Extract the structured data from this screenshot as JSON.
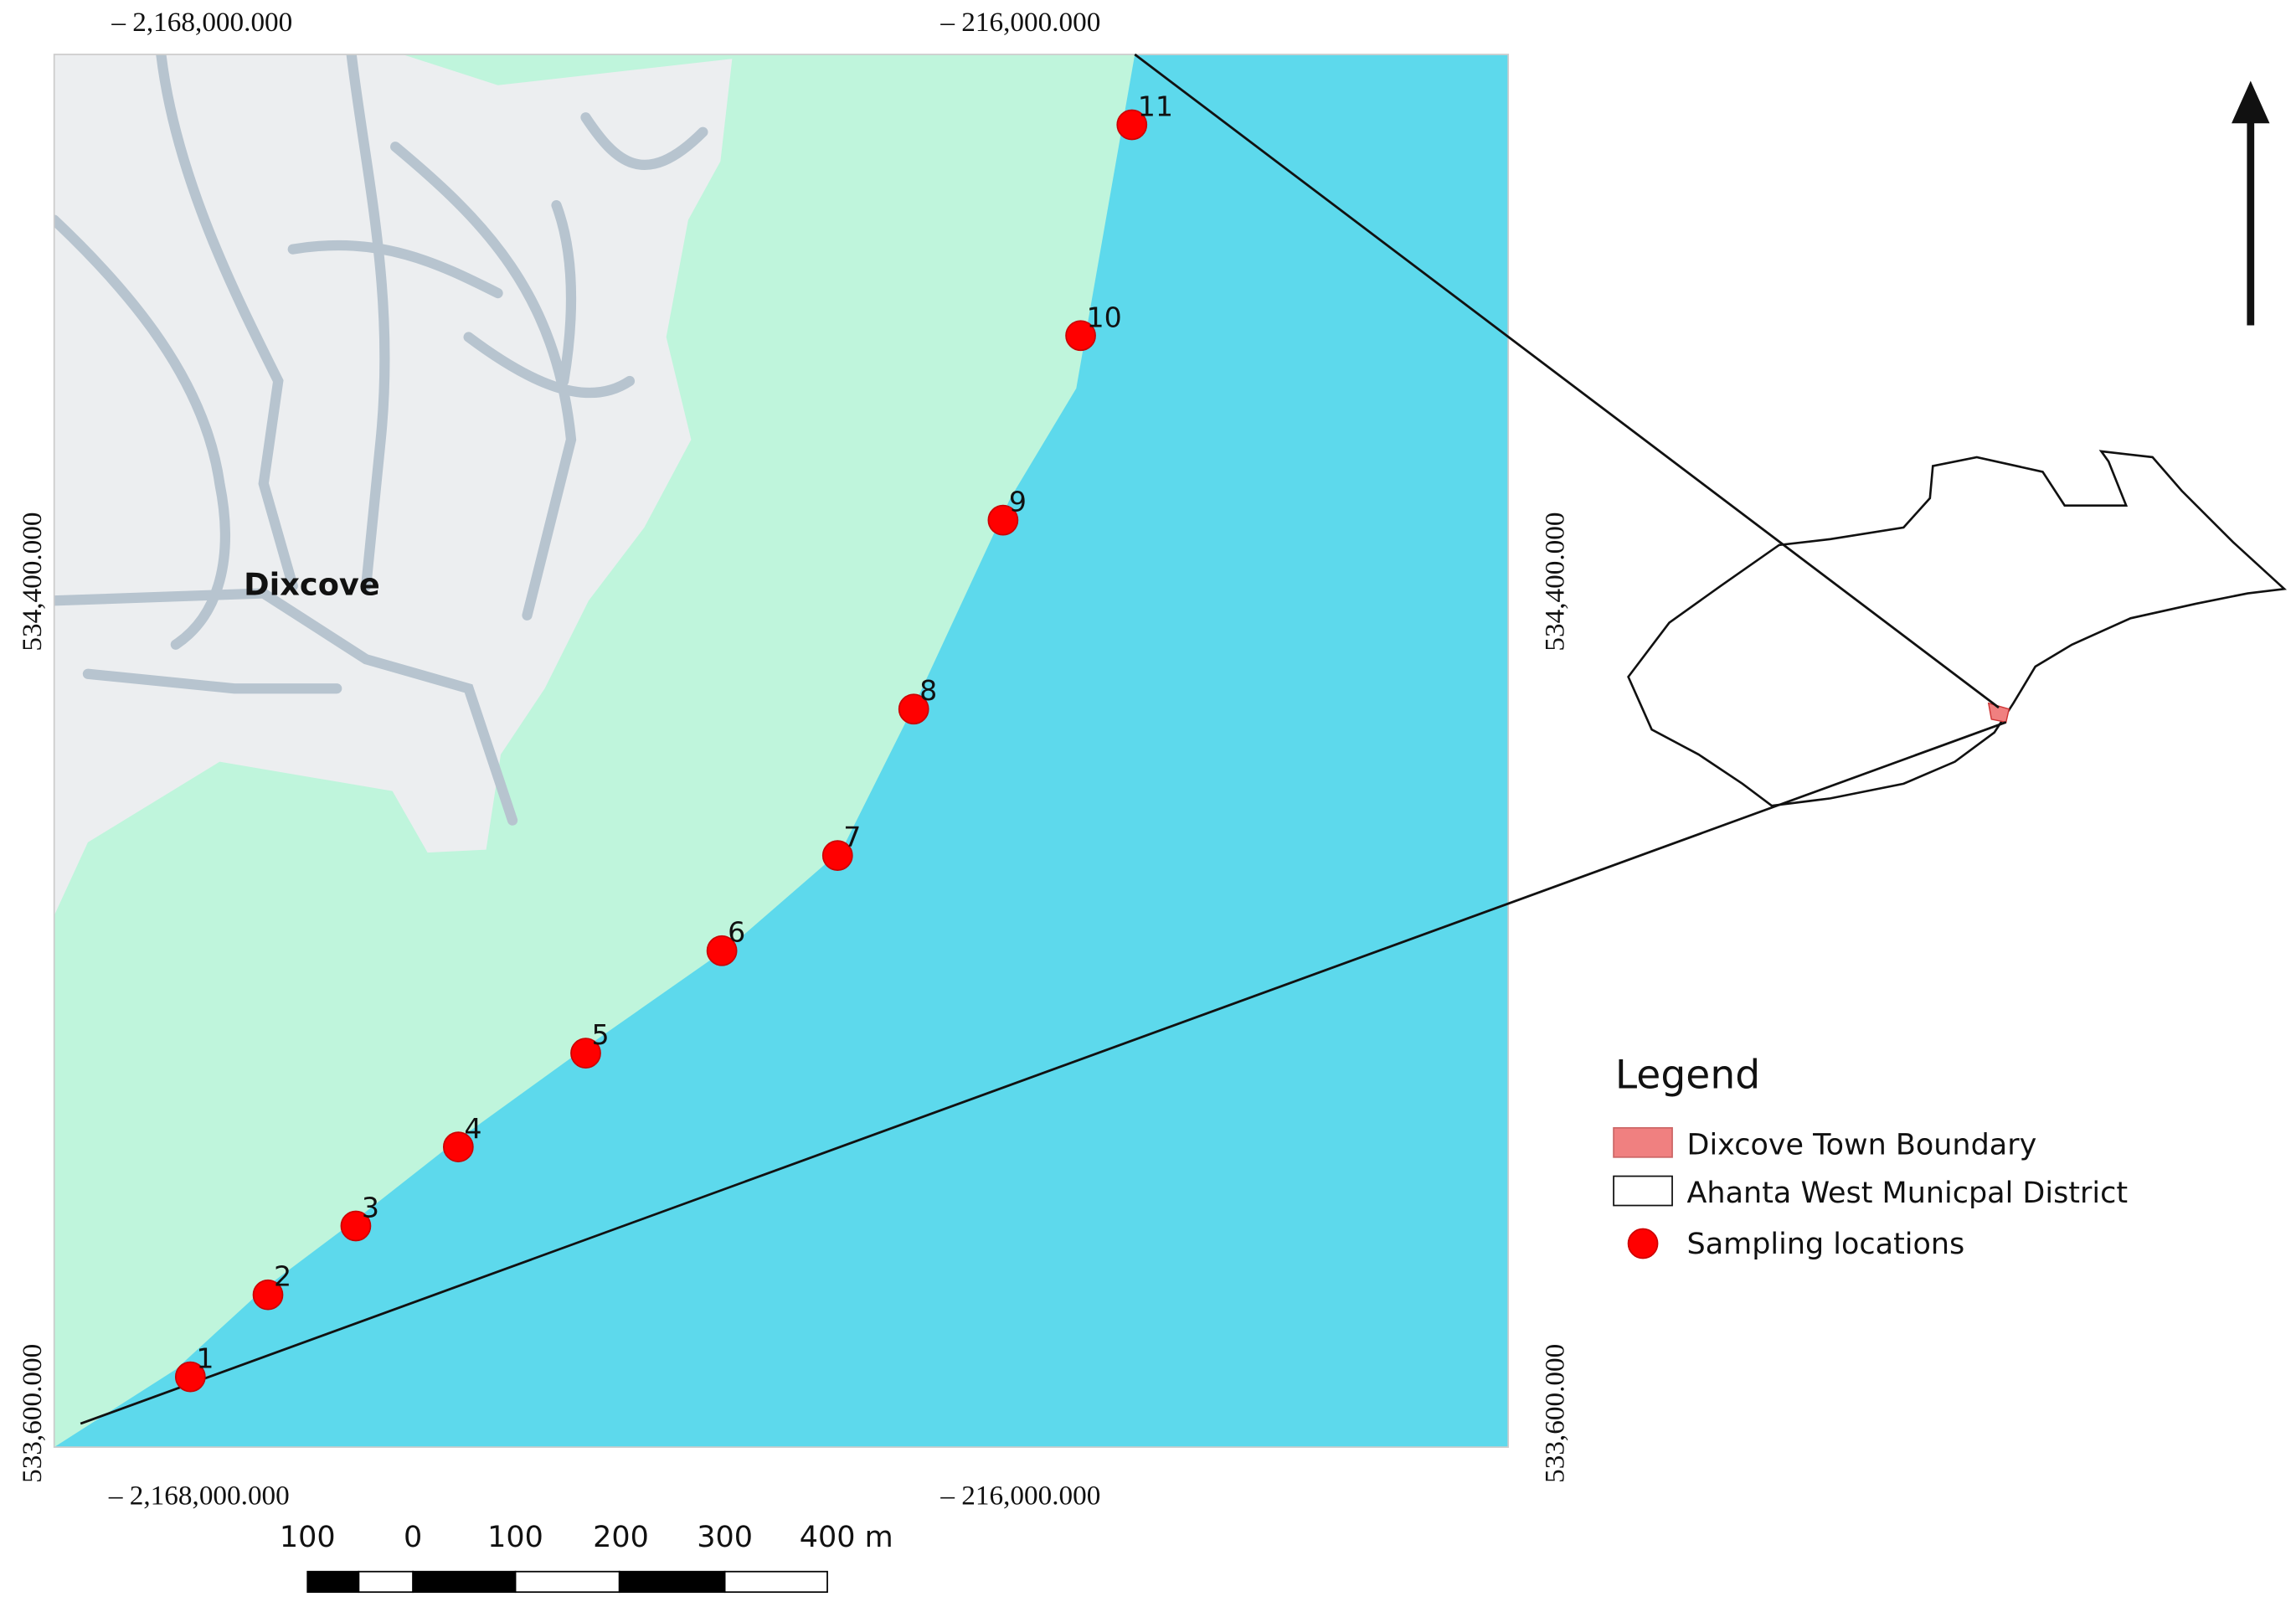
{
  "coordinates": {
    "top": [
      "– 2,168,000.000",
      "– 216,000.000"
    ],
    "bottom": [
      "– 2,168,000.000",
      "– 216,000.000"
    ],
    "left": [
      "534,400.000",
      "533,600.000"
    ],
    "right": [
      "534,400.000",
      "533,600.000"
    ]
  },
  "map": {
    "town_label": "Dixcove",
    "sampling_points": [
      "1",
      "2",
      "3",
      "4",
      "5",
      "6",
      "7",
      "8",
      "9",
      "10",
      "11"
    ]
  },
  "legend": {
    "title": "Legend",
    "items": [
      "Dixcove Town Boundary",
      "Ahanta West Municpal District",
      "Sampling locations"
    ]
  },
  "scale_bar": {
    "labels": [
      "100",
      "0",
      "100",
      "200",
      "300",
      "400 m"
    ]
  }
}
